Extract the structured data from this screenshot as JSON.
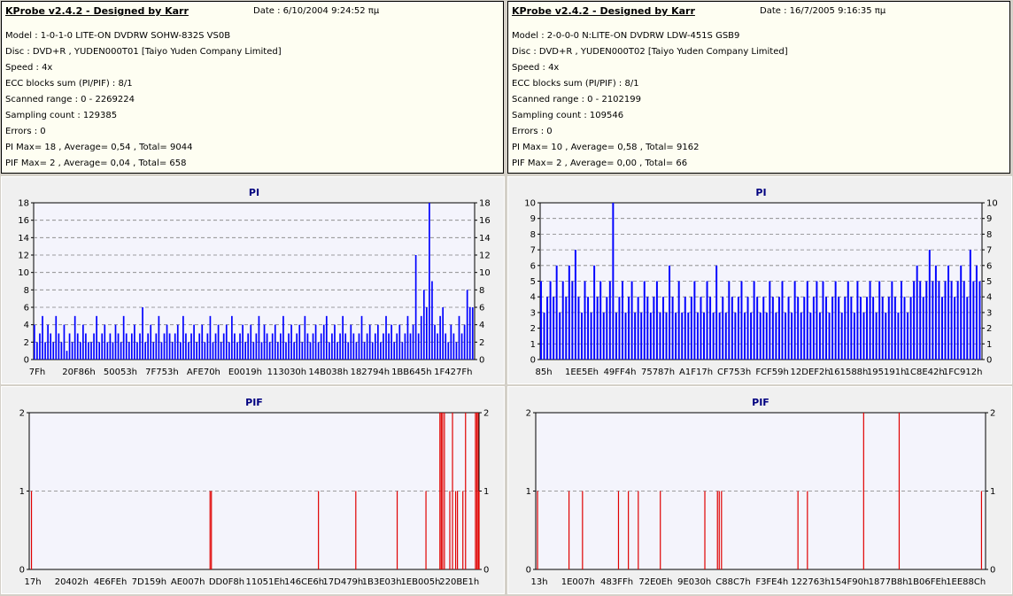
{
  "colors": {
    "pi": "#0000ff",
    "pif": "#e00000",
    "plot_bg": "#f4f4fc",
    "info_bg": "#fefef2"
  },
  "left": {
    "header": {
      "title": "KProbe v2.4.2 - Designed by Karr",
      "date": "Date : 6/10/2004 9:24:52 πμ"
    },
    "lines": [
      "Model : 1-0-1-0 LITE-ON DVDRW SOHW-832S  VS0B",
      "Disc : DVD+R , YUDEN000T01 [Taiyo Yuden Company Limited]",
      "Speed : 4x",
      "ECC blocks sum (PI/PIF) : 8/1",
      "Scanned range : 0 - 2269224",
      "Sampling count : 129385",
      "Errors : 0",
      "PI Max= 18 , Average= 0,54 , Total= 9044",
      "PIF Max= 2 , Average= 0,04 , Total= 658"
    ]
  },
  "right": {
    "header": {
      "title": "KProbe v2.4.2 - Designed by Karr",
      "date": "Date : 16/7/2005 9:16:35 πμ"
    },
    "lines": [
      "Model : 2-0-0-0 N:LITE-ON DVDRW LDW-451S   GSB9",
      "Disc : DVD+R , YUDEN000T02 [Taiyo Yuden Company Limited]",
      "Speed : 4x",
      "ECC blocks sum (PI/PIF) : 8/1",
      "Scanned range : 0 - 2102199",
      "Sampling count : 109546",
      "Errors : 0",
      "PI Max= 10 , Average= 0,58 , Total= 9162",
      "PIF Max= 2 , Average= 0,00 , Total= 66"
    ]
  },
  "chart_data": [
    {
      "id": "pi-left",
      "type": "bar",
      "title": "PI",
      "ylim": [
        0,
        18
      ],
      "yticks": [
        0,
        2,
        4,
        6,
        8,
        10,
        12,
        14,
        16,
        18
      ],
      "xticks": [
        "7Fh",
        "20F86h",
        "50053h",
        "7F753h",
        "AFE70h",
        "E0019h",
        "113030h",
        "14B038h",
        "182794h",
        "1BB645h",
        "1F427Fh"
      ],
      "grid": true,
      "color": "#0000ff",
      "values": [
        4,
        2,
        3,
        5,
        2,
        4,
        3,
        2,
        5,
        3,
        2,
        4,
        1,
        3,
        2,
        5,
        3,
        2,
        4,
        3,
        2,
        2,
        3,
        5,
        2,
        3,
        4,
        2,
        3,
        2,
        4,
        3,
        2,
        5,
        3,
        2,
        3,
        4,
        2,
        3,
        6,
        2,
        3,
        4,
        2,
        3,
        5,
        2,
        3,
        4,
        3,
        2,
        3,
        4,
        2,
        5,
        3,
        2,
        3,
        4,
        2,
        3,
        4,
        2,
        3,
        5,
        2,
        3,
        4,
        2,
        3,
        4,
        2,
        5,
        3,
        2,
        3,
        4,
        2,
        3,
        4,
        2,
        3,
        5,
        2,
        4,
        3,
        2,
        3,
        4,
        2,
        3,
        5,
        2,
        3,
        4,
        2,
        3,
        4,
        2,
        5,
        3,
        2,
        3,
        4,
        2,
        3,
        4,
        5,
        2,
        3,
        4,
        2,
        3,
        5,
        3,
        2,
        4,
        3,
        2,
        3,
        5,
        2,
        3,
        4,
        2,
        3,
        4,
        2,
        3,
        5,
        3,
        4,
        2,
        3,
        4,
        2,
        3,
        5,
        3,
        4,
        12,
        3,
        5,
        8,
        6,
        18,
        9,
        4,
        3,
        5,
        6,
        3,
        2,
        4,
        3,
        2,
        5,
        3,
        4,
        8,
        6,
        6
      ]
    },
    {
      "id": "pi-right",
      "type": "bar",
      "title": "PI",
      "ylim": [
        0,
        10
      ],
      "yticks": [
        0,
        1,
        2,
        3,
        4,
        5,
        6,
        7,
        8,
        9,
        10
      ],
      "xticks": [
        "85h",
        "1EE5Eh",
        "49FF4h",
        "75787h",
        "A1F17h",
        "CF753h",
        "FCF59h",
        "12DEF2h",
        "161588h",
        "195191h",
        "1C8E42h",
        "1FC912h"
      ],
      "grid": true,
      "color": "#0000ff",
      "values": [
        5,
        3,
        4,
        5,
        4,
        6,
        3,
        5,
        4,
        6,
        5,
        7,
        4,
        3,
        5,
        4,
        3,
        6,
        4,
        5,
        3,
        4,
        5,
        10,
        3,
        4,
        5,
        3,
        4,
        5,
        3,
        4,
        3,
        5,
        4,
        3,
        4,
        5,
        3,
        4,
        3,
        6,
        4,
        3,
        5,
        3,
        4,
        3,
        4,
        5,
        3,
        4,
        3,
        5,
        4,
        3,
        6,
        3,
        4,
        3,
        5,
        4,
        3,
        4,
        5,
        3,
        4,
        3,
        5,
        4,
        3,
        4,
        3,
        5,
        4,
        3,
        4,
        5,
        3,
        4,
        3,
        5,
        4,
        3,
        4,
        5,
        3,
        4,
        5,
        3,
        5,
        4,
        3,
        4,
        5,
        4,
        3,
        4,
        5,
        4,
        3,
        5,
        4,
        3,
        4,
        5,
        4,
        3,
        5,
        4,
        3,
        4,
        5,
        4,
        3,
        5,
        4,
        3,
        4,
        5,
        6,
        5,
        4,
        5,
        7,
        5,
        6,
        5,
        4,
        5,
        6,
        5,
        4,
        5,
        6,
        5,
        4,
        7,
        5,
        6,
        5
      ]
    },
    {
      "id": "pif-left",
      "type": "bar",
      "title": "PIF",
      "ylim": [
        0,
        2
      ],
      "yticks": [
        0,
        1,
        2
      ],
      "xticks": [
        "17h",
        "20402h",
        "4E6FEh",
        "7D159h",
        "AE007h",
        "DD0F8h",
        "11051Eh",
        "146CE6h",
        "17D479h",
        "1B3E03h",
        "1EB005h",
        "220BE1h"
      ],
      "grid": true,
      "color": "#e00000",
      "x": [
        0.5,
        40.2,
        40.5,
        64.3,
        72.6,
        81.8,
        88.2,
        91.3,
        91.6,
        91.9,
        92.3,
        93.5,
        94.1,
        94.8,
        95.2,
        96.4,
        97.0,
        99.2,
        99.5,
        99.8,
        100.0
      ],
      "values": [
        1,
        1,
        1,
        1,
        1,
        1,
        1,
        2,
        2,
        2,
        2,
        1,
        2,
        1,
        1,
        1,
        2,
        2,
        2,
        2,
        1
      ]
    },
    {
      "id": "pif-right",
      "type": "bar",
      "title": "PIF",
      "ylim": [
        0,
        2
      ],
      "yticks": [
        0,
        1,
        2
      ],
      "xticks": [
        "13h",
        "1E007h",
        "483FFh",
        "72E0Eh",
        "9E030h",
        "C88C7h",
        "F3FE4h",
        "122763h",
        "154F90h",
        "1877B8h",
        "1B06FEh",
        "1EE88Ch"
      ],
      "grid": true,
      "color": "#e00000",
      "x": [
        0.4,
        7.4,
        10.4,
        18.4,
        20.6,
        22.8,
        27.7,
        37.6,
        40.4,
        40.8,
        41.3,
        58.3,
        60.4,
        72.9,
        80.8,
        99.1
      ],
      "values": [
        1,
        1,
        1,
        1,
        1,
        1,
        1,
        1,
        1,
        1,
        1,
        1,
        1,
        2,
        2,
        1
      ]
    }
  ]
}
